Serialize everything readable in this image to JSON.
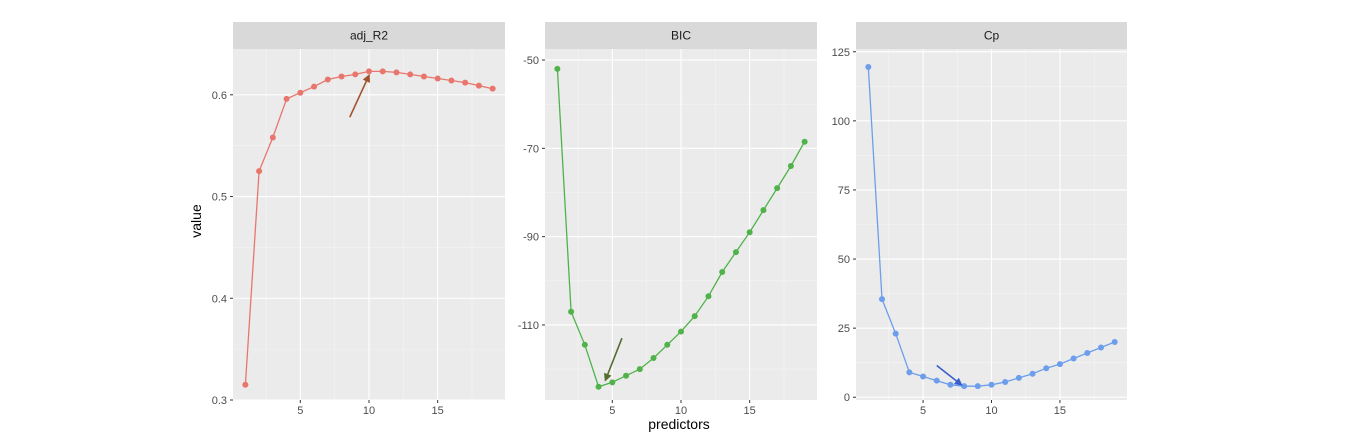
{
  "figure": {
    "xlabel": "predictors",
    "ylabel": "value"
  },
  "chart_data": [
    {
      "type": "line",
      "panel": "adj_R2",
      "color": "#E8766C",
      "x": [
        1,
        2,
        3,
        4,
        5,
        6,
        7,
        8,
        9,
        10,
        11,
        12,
        13,
        14,
        15,
        16,
        17,
        18,
        19
      ],
      "values": [
        0.315,
        0.525,
        0.558,
        0.596,
        0.602,
        0.608,
        0.615,
        0.618,
        0.62,
        0.623,
        0.623,
        0.622,
        0.62,
        0.618,
        0.616,
        0.614,
        0.612,
        0.609,
        0.606
      ],
      "xlim": [
        0.1,
        19.9
      ],
      "ylim": [
        0.3,
        0.645
      ],
      "xticks": [
        5,
        10,
        15
      ],
      "yticks": [
        0.3,
        0.4,
        0.5,
        0.6
      ],
      "ytick_labels": [
        "0.3",
        "0.4",
        "0.5",
        "0.6"
      ],
      "grid": true,
      "annotation": {
        "type": "arrow",
        "color": "#A0522D",
        "from": [
          8.6,
          0.578
        ],
        "to": [
          10.0,
          0.619
        ]
      }
    },
    {
      "type": "line",
      "panel": "BIC",
      "color": "#4FB34A",
      "x": [
        1,
        2,
        3,
        4,
        5,
        6,
        7,
        8,
        9,
        10,
        11,
        12,
        13,
        14,
        15,
        16,
        17,
        18,
        19
      ],
      "values": [
        -52,
        -107,
        -114.5,
        -124,
        -123,
        -121.5,
        -120,
        -117.5,
        -114.5,
        -111.5,
        -108,
        -103.5,
        -98,
        -93.5,
        -89,
        -84,
        -79,
        -74,
        -68.5
      ],
      "xlim": [
        0.1,
        19.9
      ],
      "ylim": [
        -127,
        -47.5
      ],
      "xticks": [
        5,
        10,
        15
      ],
      "yticks": [
        -110,
        -90,
        -70,
        -50
      ],
      "ytick_labels": [
        "-110",
        "-90",
        "-70",
        "-50"
      ],
      "grid": true,
      "annotation": {
        "type": "arrow",
        "color": "#556B2F",
        "from": [
          5.7,
          -113
        ],
        "to": [
          4.5,
          -122.5
        ]
      }
    },
    {
      "type": "line",
      "panel": "Cp",
      "color": "#6D9EEB",
      "x": [
        1,
        2,
        3,
        4,
        5,
        6,
        7,
        8,
        9,
        10,
        11,
        12,
        13,
        14,
        15,
        16,
        17,
        18,
        19
      ],
      "values": [
        119.5,
        35.5,
        23,
        9,
        7.5,
        6,
        4.5,
        4,
        4,
        4.5,
        5.5,
        7,
        8.5,
        10.5,
        12,
        14,
        16,
        18,
        20
      ],
      "xlim": [
        0.1,
        19.9
      ],
      "ylim": [
        -1,
        126
      ],
      "xticks": [
        5,
        10,
        15
      ],
      "yticks": [
        0,
        25,
        50,
        75,
        100,
        125
      ],
      "ytick_labels": [
        "0",
        "25",
        "50",
        "75",
        "100",
        "125"
      ],
      "grid": true,
      "annotation": {
        "type": "arrow",
        "color": "#3A5FCD",
        "from": [
          6.0,
          11.5
        ],
        "to": [
          7.8,
          4.5
        ]
      }
    }
  ]
}
